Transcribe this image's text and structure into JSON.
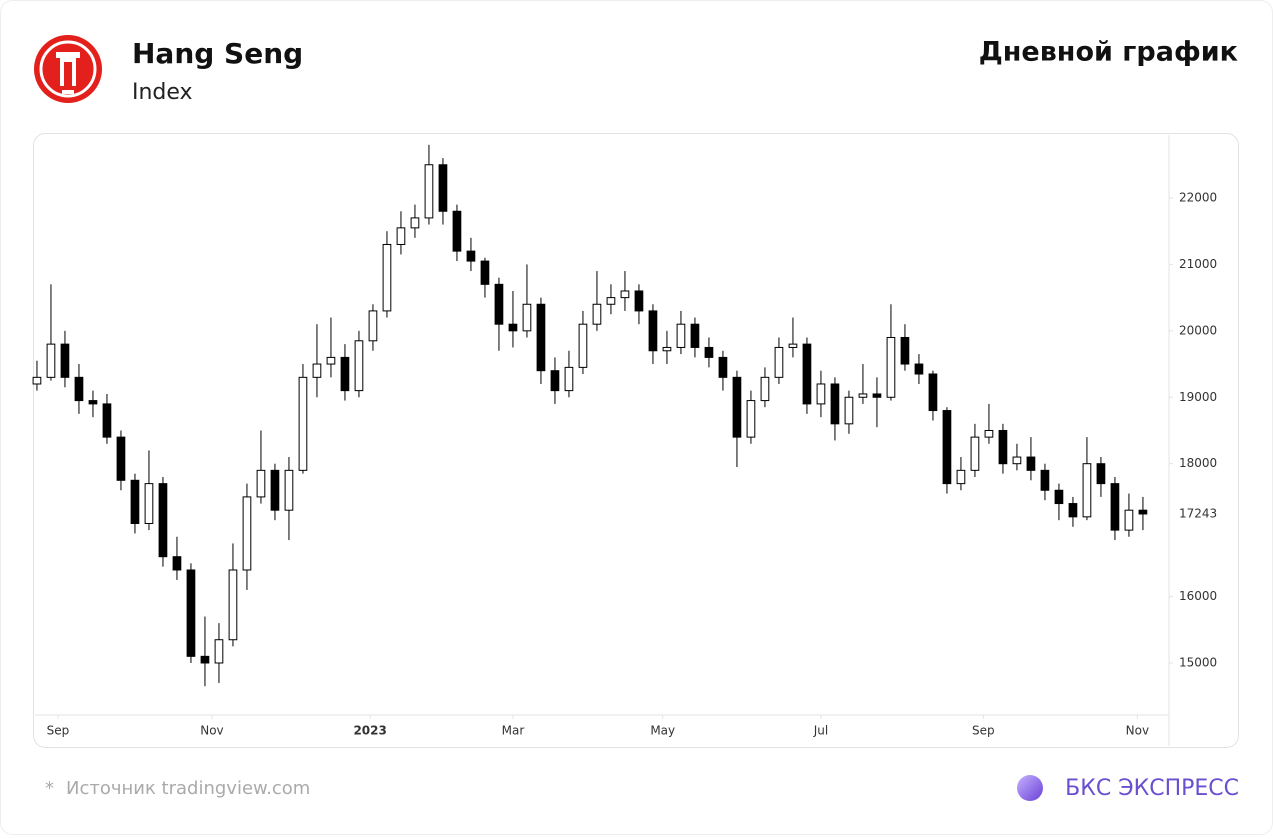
{
  "header": {
    "title": "Hang Seng",
    "subtitle": "Index",
    "chart_label": "Дневной график"
  },
  "footer": {
    "note_mark": "*",
    "source": "Источник tradingview.com",
    "brand": "БКС ЭКСПРЕСС"
  },
  "chart_data": {
    "type": "candlestick",
    "up_color": "#ffffff",
    "down_color": "#000000",
    "outline_color": "#000000",
    "xlim": [
      -0.14,
      80.79
    ],
    "ylim": [
      14217,
      22948
    ],
    "xticks": [
      {
        "value": 1.5,
        "label": "Sep"
      },
      {
        "value": 12.5,
        "label": "Nov"
      },
      {
        "value": 23.8,
        "label": "2023"
      },
      {
        "value": 34,
        "label": "Mar"
      },
      {
        "value": 44.7,
        "label": "May"
      },
      {
        "value": 56,
        "label": "Jul"
      },
      {
        "value": 67.6,
        "label": "Sep"
      },
      {
        "value": 78.6,
        "label": "Nov"
      }
    ],
    "yticks": [
      15000,
      16000,
      18000,
      19000,
      20000,
      21000,
      22000
    ],
    "last_price": 17243,
    "x": [
      0,
      1,
      2,
      3,
      4,
      5,
      6,
      7,
      8,
      9,
      10,
      11,
      12,
      13,
      14,
      15,
      16,
      17,
      18,
      19,
      20,
      21,
      22,
      23,
      24,
      25,
      26,
      27,
      28,
      29,
      30,
      31,
      32,
      33,
      34,
      35,
      36,
      37,
      38,
      39,
      40,
      41,
      42,
      43,
      44,
      45,
      46,
      47,
      48,
      49,
      50,
      51,
      52,
      53,
      54,
      55,
      56,
      57,
      58,
      59,
      60,
      61,
      62,
      63,
      64,
      65,
      66,
      67,
      68,
      69,
      70,
      71,
      72,
      73,
      74,
      75,
      76,
      77,
      78,
      79
    ],
    "open": [
      19200,
      19300,
      19800,
      19300,
      18950,
      18900,
      18400,
      17750,
      17100,
      17700,
      16600,
      16400,
      15100,
      15000,
      15350,
      16400,
      17500,
      17900,
      17300,
      17900,
      19300,
      19500,
      19600,
      19100,
      19850,
      20300,
      21300,
      21550,
      21700,
      22500,
      21800,
      21200,
      21050,
      20700,
      20100,
      20000,
      20400,
      19400,
      19100,
      19450,
      20100,
      20400,
      20500,
      20600,
      20300,
      19700,
      19750,
      20100,
      19750,
      19600,
      19300,
      18400,
      18950,
      19300,
      19750,
      19800,
      18900,
      19200,
      18600,
      19000,
      19050,
      19000,
      19900,
      19500,
      19350,
      18800,
      17700,
      17900,
      18400,
      18500,
      18000,
      18100,
      17900,
      17600,
      17400,
      17200,
      18000,
      17700,
      17000,
      17300
    ],
    "high": [
      19550,
      20700,
      20000,
      19500,
      19100,
      19050,
      18500,
      17850,
      18200,
      17800,
      16900,
      16500,
      15700,
      15600,
      16800,
      17700,
      18500,
      18000,
      18100,
      19500,
      20100,
      20200,
      19800,
      20000,
      20400,
      21500,
      21800,
      21900,
      22800,
      22600,
      21900,
      21400,
      21100,
      20800,
      20600,
      21000,
      20500,
      19600,
      19700,
      20300,
      20900,
      20700,
      20900,
      20700,
      20400,
      20000,
      20300,
      20200,
      19900,
      19700,
      19400,
      19100,
      19450,
      19900,
      20200,
      19900,
      19400,
      19300,
      19100,
      19500,
      19300,
      20400,
      20100,
      19650,
      19400,
      18850,
      18100,
      18600,
      18900,
      18600,
      18300,
      18400,
      18000,
      17700,
      17500,
      18400,
      18100,
      17800,
      17550,
      17500
    ],
    "low": [
      19100,
      19250,
      19150,
      18750,
      18700,
      18300,
      17600,
      16950,
      17000,
      16450,
      16250,
      15000,
      14650,
      14700,
      15250,
      16100,
      17400,
      17150,
      16850,
      17850,
      19000,
      19300,
      18950,
      19000,
      19700,
      20200,
      21150,
      21400,
      21600,
      21600,
      21050,
      20900,
      20500,
      19700,
      19750,
      19900,
      19200,
      18900,
      19000,
      19350,
      20000,
      20250,
      20300,
      20100,
      19500,
      19500,
      19650,
      19600,
      19450,
      19100,
      17950,
      18300,
      18850,
      19200,
      19600,
      18750,
      18700,
      18350,
      18450,
      18900,
      18550,
      18950,
      19400,
      19200,
      18650,
      17550,
      17600,
      17800,
      18300,
      17850,
      17900,
      17750,
      17450,
      17150,
      17050,
      17150,
      17500,
      16850,
      16900,
      17000
    ],
    "close": [
      19300,
      19800,
      19300,
      18950,
      18900,
      18400,
      17750,
      17100,
      17700,
      16600,
      16400,
      15100,
      15000,
      15350,
      16400,
      17500,
      17900,
      17300,
      17900,
      19300,
      19500,
      19600,
      19100,
      19850,
      20300,
      21300,
      21550,
      21700,
      22500,
      21800,
      21200,
      21050,
      20700,
      20100,
      20000,
      20400,
      19400,
      19100,
      19450,
      20100,
      20400,
      20500,
      20600,
      20300,
      19700,
      19750,
      20100,
      19750,
      19600,
      19300,
      18400,
      18950,
      19300,
      19750,
      19800,
      18900,
      19200,
      18600,
      19000,
      19050,
      19000,
      19900,
      19500,
      19350,
      18800,
      17700,
      17900,
      18400,
      18500,
      18000,
      18100,
      17900,
      17600,
      17400,
      17200,
      18000,
      17700,
      17000,
      17300,
      17243
    ]
  }
}
